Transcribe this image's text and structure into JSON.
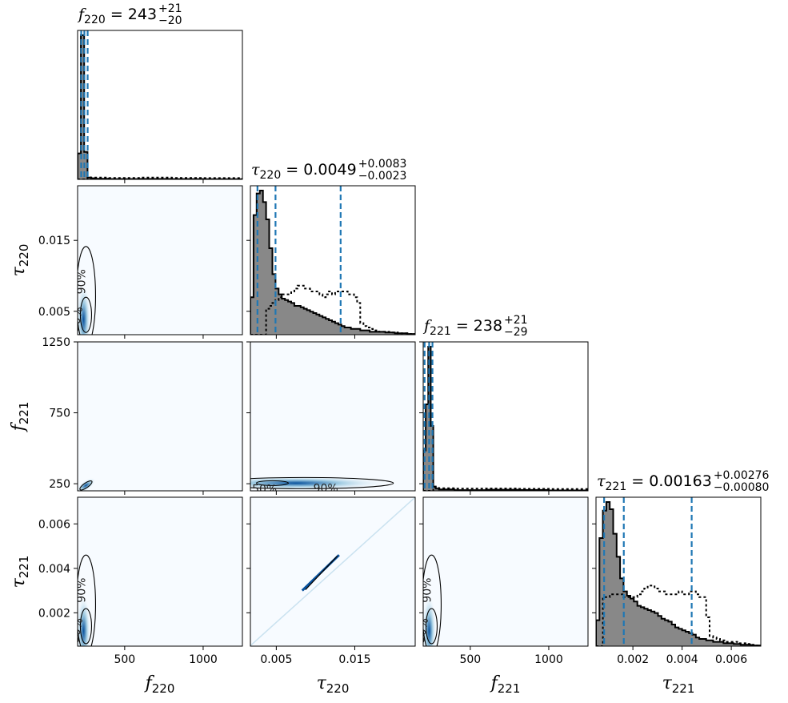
{
  "chart_data": {
    "type": "corner",
    "parameters": [
      {
        "symbol": "f",
        "sub": "220",
        "range": [
          200,
          1250
        ]
      },
      {
        "symbol": "τ",
        "sub": "220",
        "range": [
          0.0017,
          0.0227
        ]
      },
      {
        "symbol": "f",
        "sub": "221",
        "range": [
          200,
          1250
        ]
      },
      {
        "symbol": "τ",
        "sub": "221",
        "range": [
          0.0005,
          0.0072
        ]
      }
    ],
    "titles": [
      {
        "sym": "f",
        "sub": "220",
        "eq": " = ",
        "value": "243",
        "plus": "+21",
        "minus": "−20"
      },
      {
        "sym": "τ",
        "sub": "220",
        "eq": " = ",
        "value": "0.0049",
        "plus": "+0.0083",
        "minus": "−0.0023"
      },
      {
        "sym": "f",
        "sub": "221",
        "eq": " = ",
        "value": "238",
        "plus": "+21",
        "minus": "−29"
      },
      {
        "sym": "τ",
        "sub": "221",
        "eq": " = ",
        "value": "0.00163",
        "plus": "+0.00276",
        "minus": "−0.00080"
      }
    ],
    "xticks": [
      {
        "values": [
          500,
          1000
        ],
        "labels": [
          "500",
          "1000"
        ]
      },
      {
        "values": [
          0.005,
          0.015
        ],
        "labels": [
          "0.005",
          "0.015"
        ]
      },
      {
        "values": [
          500,
          1000
        ],
        "labels": [
          "500",
          "1000"
        ]
      },
      {
        "values": [
          0.002,
          0.004,
          0.006
        ],
        "labels": [
          "0.002",
          "0.004",
          "0.006"
        ]
      }
    ],
    "yticks": [
      null,
      {
        "values": [
          0.005,
          0.015
        ],
        "labels": [
          "0.005",
          "0.015"
        ]
      },
      {
        "values": [
          250,
          750,
          1250
        ],
        "labels": [
          "250",
          "750",
          "1250"
        ]
      },
      {
        "values": [
          0.002,
          0.004,
          0.006
        ],
        "labels": [
          "0.002",
          "0.004",
          "0.006"
        ]
      }
    ],
    "quantiles": [
      [
        223,
        243,
        264
      ],
      [
        0.0026,
        0.0049,
        0.0132
      ],
      [
        209,
        238,
        259
      ],
      [
        0.00083,
        0.00163,
        0.00439
      ]
    ],
    "histograms": [
      {
        "edges": [
          200,
          221,
          242,
          263,
          284,
          305,
          400,
          600,
          800,
          1000,
          1250
        ],
        "filled": [
          0.18,
          1.0,
          0.19,
          0.012,
          0.008,
          0.004,
          0.002,
          0.003,
          0.002,
          0.001
        ],
        "prior": [
          0.0,
          0.0,
          0.0,
          0.014,
          0.012,
          0.012,
          0.01,
          0.012,
          0.01,
          0.009
        ]
      },
      {
        "edges": [
          0.0017,
          0.0021,
          0.0025,
          0.0029,
          0.0033,
          0.0037,
          0.0041,
          0.0045,
          0.0049,
          0.0053,
          0.0057,
          0.0061,
          0.0065,
          0.0069,
          0.0073,
          0.0077,
          0.0081,
          0.0085,
          0.0089,
          0.0093,
          0.0097,
          0.0101,
          0.0105,
          0.0109,
          0.0113,
          0.0117,
          0.0121,
          0.0125,
          0.0129,
          0.0133,
          0.0137,
          0.0141,
          0.0145,
          0.0149,
          0.0153,
          0.0157,
          0.0161,
          0.0165,
          0.0169,
          0.0173,
          0.0177,
          0.0181,
          0.0185,
          0.0189,
          0.0193,
          0.0197,
          0.0201,
          0.0205,
          0.0209,
          0.0213,
          0.0217,
          0.0221,
          0.0227
        ],
        "filled": [
          0.26,
          0.83,
          0.98,
          1.0,
          0.92,
          0.8,
          0.6,
          0.42,
          0.32,
          0.28,
          0.25,
          0.24,
          0.23,
          0.22,
          0.2,
          0.2,
          0.19,
          0.18,
          0.17,
          0.16,
          0.15,
          0.14,
          0.13,
          0.12,
          0.11,
          0.1,
          0.09,
          0.08,
          0.07,
          0.06,
          0.05,
          0.05,
          0.04,
          0.04,
          0.04,
          0.03,
          0.03,
          0.03,
          0.02,
          0.02,
          0.02,
          0.02,
          0.02,
          0.015,
          0.015,
          0.015,
          0.01,
          0.01,
          0.01,
          0.01,
          0.005,
          0.005
        ],
        "prior": [
          0.0,
          0.0,
          0.0,
          0.0,
          0.0,
          0.18,
          0.2,
          0.22,
          0.24,
          0.26,
          0.28,
          0.28,
          0.28,
          0.3,
          0.32,
          0.34,
          0.34,
          0.32,
          0.32,
          0.3,
          0.3,
          0.3,
          0.28,
          0.26,
          0.28,
          0.3,
          0.28,
          0.3,
          0.3,
          0.3,
          0.3,
          0.28,
          0.28,
          0.26,
          0.22,
          0.08,
          0.06,
          0.05,
          0.04,
          0.03,
          0.03,
          0.02,
          0.02,
          0.02,
          0.02,
          0.015,
          0.015,
          0.01,
          0.01,
          0.01,
          0.005,
          0.005
        ]
      },
      {
        "edges": [
          200,
          216,
          232,
          248,
          264,
          280,
          300,
          400,
          600,
          800,
          1000,
          1250
        ],
        "filled": [
          0.28,
          0.6,
          1.0,
          0.45,
          0.03,
          0.015,
          0.01,
          0.005,
          0.008,
          0.006,
          0.003
        ],
        "prior": [
          0.0,
          0.0,
          0.0,
          0.0,
          0.025,
          0.02,
          0.018,
          0.015,
          0.016,
          0.014,
          0.012
        ]
      },
      {
        "edges": [
          0.0005,
          0.00064,
          0.00078,
          0.00092,
          0.00106,
          0.0012,
          0.00134,
          0.00148,
          0.00162,
          0.00176,
          0.0019,
          0.00204,
          0.00218,
          0.00232,
          0.00246,
          0.0026,
          0.00274,
          0.00288,
          0.00302,
          0.00316,
          0.0033,
          0.00344,
          0.00358,
          0.00372,
          0.00386,
          0.004,
          0.00414,
          0.00428,
          0.00442,
          0.00456,
          0.0047,
          0.00484,
          0.00498,
          0.00512,
          0.00526,
          0.0054,
          0.00554,
          0.00568,
          0.00582,
          0.00596,
          0.0061,
          0.00624,
          0.00638,
          0.00652,
          0.00666,
          0.0068,
          0.00694,
          0.0072
        ],
        "filled": [
          0.18,
          0.75,
          0.94,
          1.0,
          0.95,
          0.78,
          0.62,
          0.47,
          0.38,
          0.35,
          0.33,
          0.31,
          0.28,
          0.27,
          0.26,
          0.25,
          0.24,
          0.23,
          0.21,
          0.19,
          0.18,
          0.17,
          0.15,
          0.13,
          0.12,
          0.11,
          0.1,
          0.09,
          0.08,
          0.06,
          0.05,
          0.05,
          0.04,
          0.04,
          0.03,
          0.03,
          0.03,
          0.02,
          0.02,
          0.02,
          0.015,
          0.015,
          0.01,
          0.01,
          0.01,
          0.005,
          0.005
        ],
        "prior": [
          0.0,
          0.0,
          0.34,
          0.34,
          0.36,
          0.36,
          0.36,
          0.36,
          0.34,
          0.34,
          0.34,
          0.34,
          0.36,
          0.38,
          0.4,
          0.42,
          0.42,
          0.4,
          0.38,
          0.38,
          0.36,
          0.36,
          0.36,
          0.36,
          0.38,
          0.36,
          0.36,
          0.38,
          0.38,
          0.36,
          0.34,
          0.34,
          0.2,
          0.07,
          0.06,
          0.05,
          0.04,
          0.04,
          0.03,
          0.03,
          0.03,
          0.02,
          0.02,
          0.02,
          0.015,
          0.01,
          0.005
        ]
      }
    ],
    "contour_labels": [
      "50%",
      "90%"
    ],
    "colors": {
      "hist_fill": "#888888",
      "quantile_line": "#1f77b4",
      "density_background": "#f7fbff",
      "density_mid": "#9ecae1",
      "density_peak": "#08519c",
      "contour": "#000000"
    }
  }
}
